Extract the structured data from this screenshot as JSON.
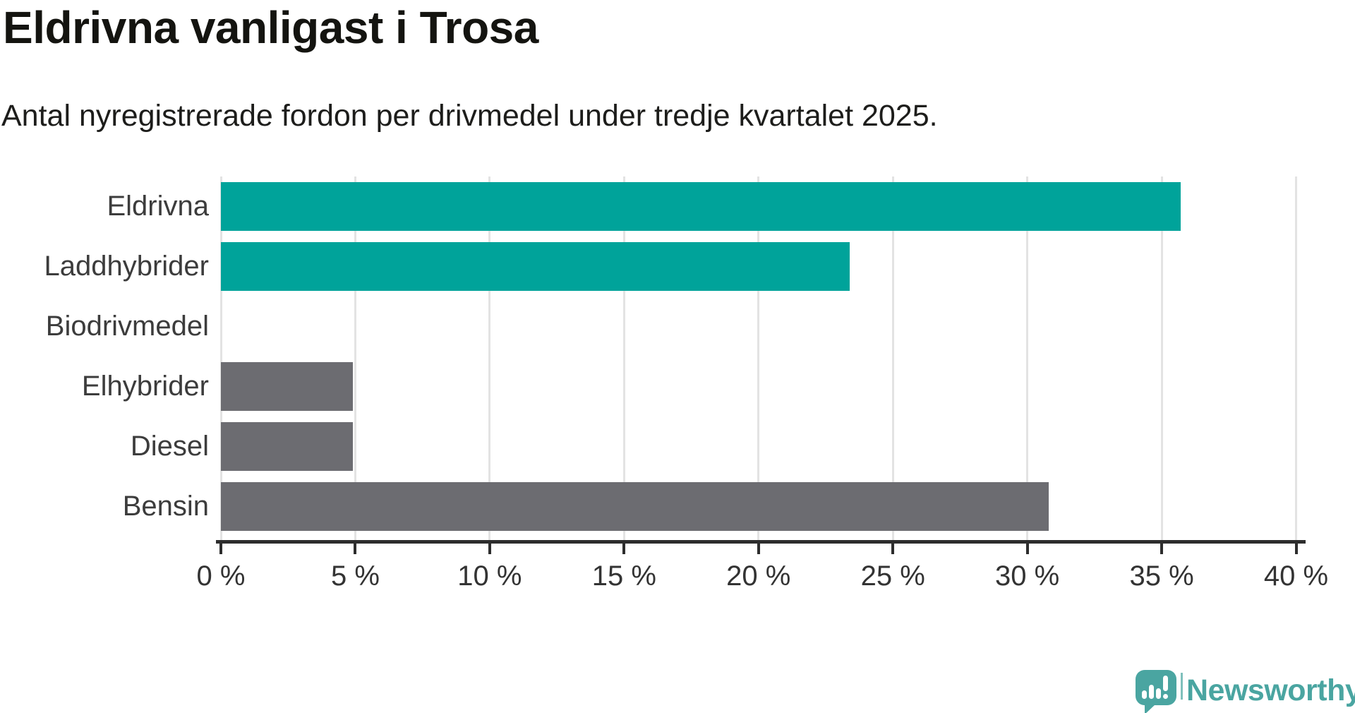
{
  "title": "Eldrivna vanligast i Trosa",
  "subtitle": "Antal nyregistrerade fordon per drivmedel under tredje kvartalet 2025.",
  "chart_data": {
    "type": "bar",
    "orientation": "horizontal",
    "title": "Eldrivna vanligast i Trosa",
    "subtitle": "Antal nyregistrerade fordon per drivmedel under tredje kvartalet 2025.",
    "categories": [
      "Eldrivna",
      "Laddhybrider",
      "Biodrivmedel",
      "Elhybrider",
      "Diesel",
      "Bensin"
    ],
    "values": [
      35.7,
      23.4,
      0,
      4.9,
      4.9,
      30.8
    ],
    "unit": "%",
    "xlim": [
      0,
      40
    ],
    "x_ticks": [
      0,
      5,
      10,
      15,
      20,
      25,
      30,
      35,
      40
    ],
    "x_tick_labels": [
      "0 %",
      "5 %",
      "10 %",
      "15 %",
      "20 %",
      "25 %",
      "30 %",
      "35 %",
      "40 %"
    ],
    "bar_colors": [
      "#00a39a",
      "#00a39a",
      "#6c6c71",
      "#6c6c71",
      "#6c6c71",
      "#6c6c71"
    ],
    "highlight_color": "#00a39a",
    "default_color": "#6c6c71",
    "grid": true,
    "gridline_color": "#e3e3e3",
    "axis_color": "#2d2d2d",
    "legend": "none"
  },
  "branding": {
    "logo_text": "Newsworthy",
    "logo_color": "#4aa5a1",
    "logo_icon": "speech-bubble-barchart-exclamation-icon"
  }
}
